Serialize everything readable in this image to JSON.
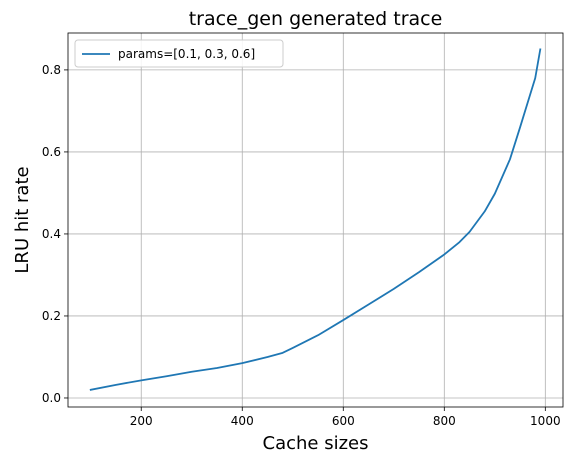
{
  "chart_data": {
    "type": "line",
    "title": "trace_gen generated trace",
    "xlabel": "Cache sizes",
    "ylabel": "LRU hit rate",
    "xlim": [
      55,
      1035
    ],
    "ylim": [
      -0.022,
      0.89
    ],
    "xticks": [
      200,
      400,
      600,
      800,
      1000
    ],
    "yticks": [
      0.0,
      0.2,
      0.4,
      0.6,
      0.8
    ],
    "xtick_labels": [
      "200",
      "400",
      "600",
      "800",
      "1000"
    ],
    "ytick_labels": [
      "0.0",
      "0.2",
      "0.4",
      "0.6",
      "0.8"
    ],
    "grid": true,
    "legend_position": "top-left",
    "series": [
      {
        "name": "params=[0.1, 0.3, 0.6]",
        "color": "#1f77b4",
        "x": [
          100,
          150,
          200,
          250,
          300,
          350,
          400,
          450,
          480,
          500,
          550,
          600,
          650,
          700,
          750,
          800,
          830,
          850,
          880,
          900,
          930,
          950,
          970,
          980,
          990
        ],
        "y": [
          0.02,
          0.032,
          0.043,
          0.053,
          0.064,
          0.073,
          0.085,
          0.1,
          0.11,
          0.122,
          0.153,
          0.19,
          0.228,
          0.266,
          0.307,
          0.35,
          0.38,
          0.405,
          0.455,
          0.498,
          0.582,
          0.66,
          0.74,
          0.78,
          0.85
        ]
      }
    ]
  }
}
